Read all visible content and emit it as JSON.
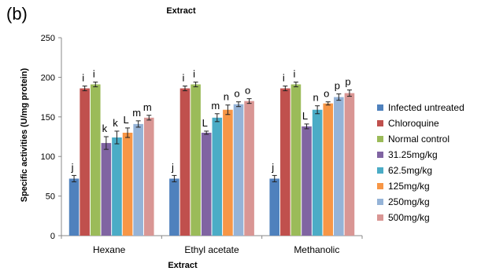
{
  "panel_label": "(b)",
  "colors": {
    "Infected untreated": "#4f81bd",
    "Chloroquine": "#c0504d",
    "Normal control": "#9bbb59",
    "31.25mg/kg": "#8064a2",
    "62.5mg/kg": "#4bacc6",
    "125mg/kg": "#f79646",
    "250mg/kg": "#95b3d7",
    "500mg/kg": "#d99694"
  },
  "chart_data": {
    "type": "bar",
    "title": "Extract",
    "xlabel": "Extract",
    "ylabel": "Specific activities (U/mg protein)",
    "ylim": [
      0,
      250
    ],
    "yticks": [
      0,
      50,
      100,
      150,
      200,
      250
    ],
    "grid": false,
    "legend_position": "right",
    "categories": [
      "Hexane",
      "Ethyl acetate",
      "Methanolic"
    ],
    "series": [
      {
        "name": "Infected untreated",
        "values": [
          72,
          72,
          72
        ],
        "errors": [
          4,
          4,
          4
        ],
        "labels": [
          "j",
          "j",
          "j"
        ]
      },
      {
        "name": "Chloroquine",
        "values": [
          186,
          186,
          186
        ],
        "errors": [
          3,
          3,
          3
        ],
        "labels": [
          "i",
          "i",
          "i"
        ]
      },
      {
        "name": "Normal control",
        "values": [
          191,
          191,
          191
        ],
        "errors": [
          3,
          3,
          3
        ],
        "labels": [
          "i",
          "i",
          "i"
        ]
      },
      {
        "name": "31.25mg/kg",
        "values": [
          117,
          130,
          138
        ],
        "errors": [
          8,
          2,
          3
        ],
        "labels": [
          "k",
          "L",
          "L"
        ]
      },
      {
        "name": "62.5mg/kg",
        "values": [
          124,
          149,
          159
        ],
        "errors": [
          8,
          5,
          5
        ],
        "labels": [
          "k",
          "m",
          "n"
        ]
      },
      {
        "name": "125mg/kg",
        "values": [
          130,
          159,
          167
        ],
        "errors": [
          6,
          6,
          2
        ],
        "labels": [
          "L",
          "n",
          "o"
        ]
      },
      {
        "name": "250mg/kg",
        "values": [
          141,
          166,
          175
        ],
        "errors": [
          4,
          3,
          4
        ],
        "labels": [
          "m",
          "o",
          "p"
        ]
      },
      {
        "name": "500mg/kg",
        "values": [
          149,
          170,
          180
        ],
        "errors": [
          3,
          3,
          4
        ],
        "labels": [
          "m",
          "o",
          "p"
        ]
      }
    ]
  }
}
